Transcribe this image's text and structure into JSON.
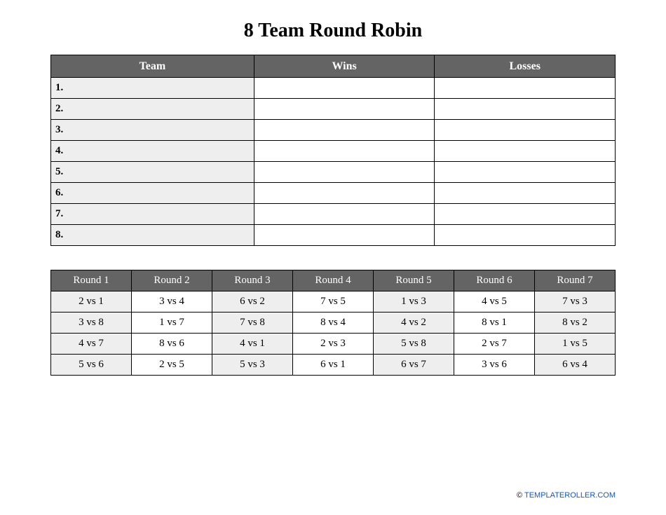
{
  "title": "8 Team Round Robin",
  "colors": {
    "header_bg": "#646464",
    "header_text": "#ffffff",
    "border": "#000000",
    "shade_bg": "#eeeeee",
    "plain_bg": "#ffffff",
    "page_bg": "#ffffff",
    "link": "#1255cc"
  },
  "standings": {
    "columns": [
      "Team",
      "Wins",
      "Losses"
    ],
    "col_widths_pct": [
      36,
      32,
      32
    ],
    "rows": [
      {
        "team": "1.",
        "wins": "",
        "losses": ""
      },
      {
        "team": "2.",
        "wins": "",
        "losses": ""
      },
      {
        "team": "3.",
        "wins": "",
        "losses": ""
      },
      {
        "team": "4.",
        "wins": "",
        "losses": ""
      },
      {
        "team": "5.",
        "wins": "",
        "losses": ""
      },
      {
        "team": "6.",
        "wins": "",
        "losses": ""
      },
      {
        "team": "7.",
        "wins": "",
        "losses": ""
      },
      {
        "team": "8.",
        "wins": "",
        "losses": ""
      }
    ]
  },
  "schedule": {
    "columns": [
      "Round 1",
      "Round 2",
      "Round 3",
      "Round 4",
      "Round 5",
      "Round 6",
      "Round 7"
    ],
    "shaded_cols": [
      0,
      2,
      4,
      6
    ],
    "rows": [
      [
        "2 vs 1",
        "3 vs 4",
        "6 vs 2",
        "7 vs 5",
        "1 vs 3",
        "4 vs 5",
        "7 vs 3"
      ],
      [
        "3 vs 8",
        "1 vs 7",
        "7 vs 8",
        "8 vs 4",
        "4 vs 2",
        "8 vs 1",
        "8 vs 2"
      ],
      [
        "4 vs 7",
        "8 vs 6",
        "4 vs 1",
        "2 vs 3",
        "5 vs 8",
        "2 vs 7",
        "1 vs 5"
      ],
      [
        "5 vs 6",
        "2 vs 5",
        "5 vs 3",
        "6 vs 1",
        "6 vs 7",
        "3 vs 6",
        "6 vs 4"
      ]
    ]
  },
  "footer": {
    "copy": "© ",
    "link_text": "TEMPLATEROLLER.COM"
  }
}
